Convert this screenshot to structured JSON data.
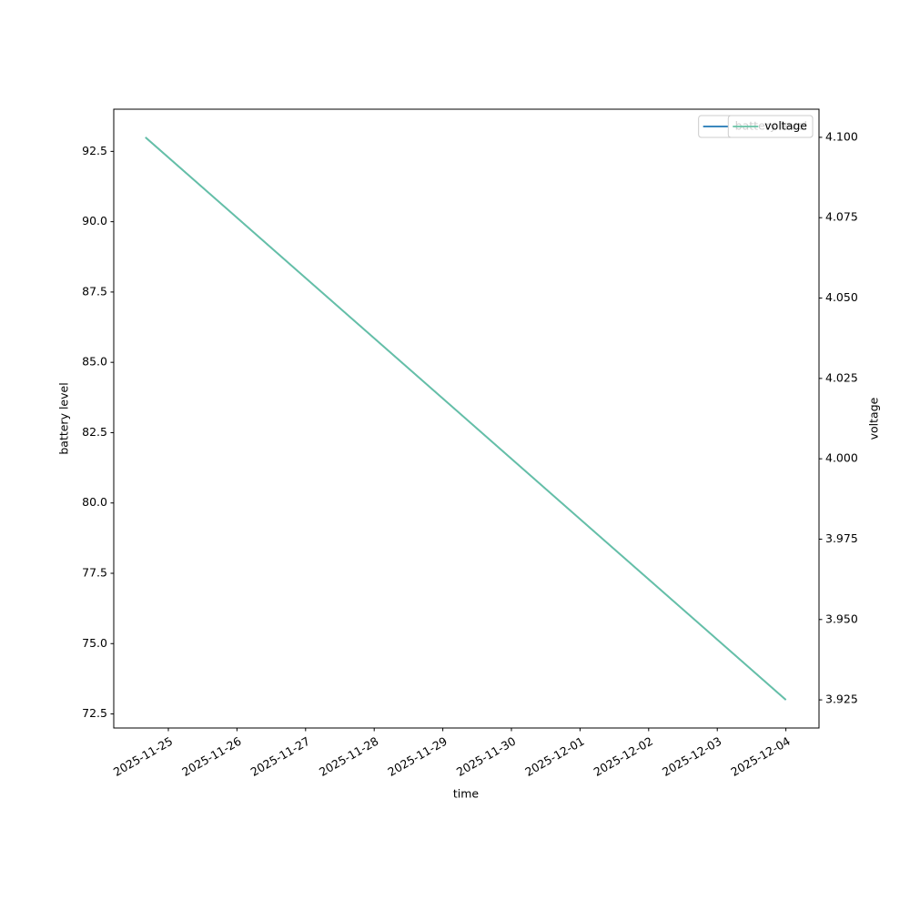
{
  "chart_data": {
    "type": "line",
    "x_label": "time",
    "y_label": "battery level",
    "y2_label": "voltage",
    "x": [
      "2025-11-24T16:00",
      "2025-12-04T00:00"
    ],
    "series": [
      {
        "name": "battery level",
        "color": "#1f77b4",
        "values": [
          93,
          73
        ]
      },
      {
        "name": "voltage",
        "color": "#66c2a5",
        "values": [
          4.1,
          3.925
        ],
        "axis": "y2"
      }
    ],
    "xlim": [
      "2025-11-24T04:54",
      "2025-12-04T11:35"
    ],
    "xticks": [
      "2025-11-25",
      "2025-11-26",
      "2025-11-27",
      "2025-11-28",
      "2025-11-29",
      "2025-11-30",
      "2025-12-01",
      "2025-12-02",
      "2025-12-03",
      "2025-12-04"
    ],
    "ylim": [
      72,
      94
    ],
    "yticks": [
      72.5,
      {
        "value": 75,
        "label": "75.0"
      },
      77.5,
      {
        "value": 80,
        "label": "80.0"
      },
      82.5,
      {
        "value": 85,
        "label": "85.0"
      },
      87.5,
      {
        "value": 90,
        "label": "90.0"
      },
      92.5
    ],
    "y2lim": [
      3.91625,
      4.10875
    ],
    "y2ticks": [
      3.925,
      {
        "value": 3.95,
        "label": "3.950"
      },
      3.975,
      {
        "value": 4,
        "label": "4.000"
      },
      4.025,
      {
        "value": 4.05,
        "label": "4.050"
      },
      4.075,
      {
        "value": 4.1,
        "label": "4.100"
      }
    ],
    "legend": "upper right",
    "grid": false
  }
}
